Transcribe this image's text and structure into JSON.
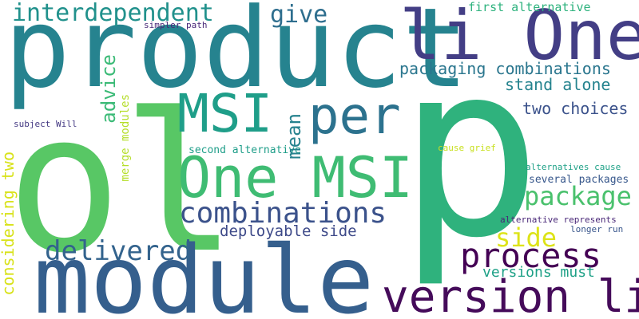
{
  "words": {
    "p": "p",
    "product": "product",
    "ol": "ol",
    "module": "module",
    "li_one": "li One",
    "version_li": "version li",
    "one_msi": "One MSI",
    "msi": "MSI",
    "per": "per",
    "combinations": "combinations",
    "process": "process",
    "delivered": "delivered",
    "package": "package",
    "side": "side",
    "interdependent": "interdependent",
    "give": "give",
    "packaging_combinations": "packaging combinations",
    "stand_alone": "stand alone",
    "two_choices": "two choices",
    "deployable_side": "deployable side",
    "versions_must": "versions must",
    "first_alternative": "first alternative",
    "second_alternative": "second alternative",
    "cause_grief": "cause grief",
    "alternatives_cause": "alternatives cause",
    "several_packages": "several packages",
    "alternative_represents": "alternative represents",
    "longer_run": "longer run",
    "simpler_path": "simpler path",
    "subject_will": "subject Will",
    "advice": "advice",
    "mean": "mean",
    "merge_modules": "merge modules",
    "considering_two": "considering two"
  },
  "palette": [
    "#440154",
    "#482677",
    "#3b528b",
    "#2c728e",
    "#21918c",
    "#28ae80",
    "#5ec962",
    "#dde318"
  ]
}
